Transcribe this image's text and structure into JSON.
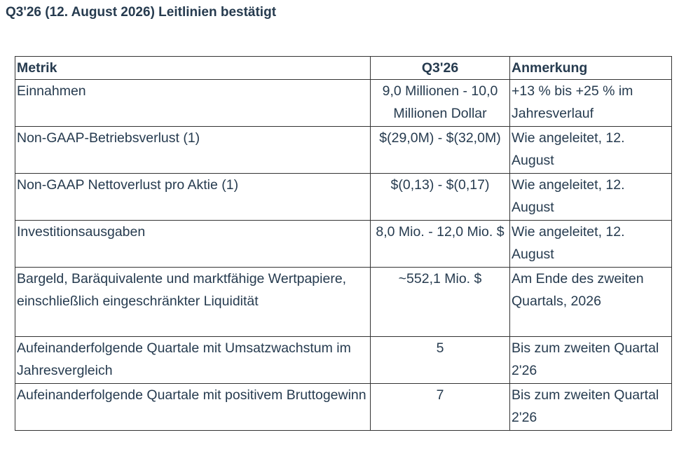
{
  "title": "Q3'26 (12. August 2026) Leitlinien bestätigt",
  "table": {
    "headers": [
      "Metrik",
      "Q3'26",
      "Anmerkung"
    ],
    "rows": [
      {
        "metric": "Einnahmen",
        "value": "9,0 Millionen - 10,0 Millionen Dollar",
        "note": "+13 % bis +25 % im Jahresverlauf",
        "lines": 2
      },
      {
        "metric": "Non-GAAP-Betriebsverlust (1)",
        "value": "$(29,0M) - $(32,0M)",
        "note": "Wie angeleitet, 12. August",
        "lines": 2
      },
      {
        "metric": "Non-GAAP Nettoverlust pro Aktie (1)",
        "value": "$(0,13) - $(0,17)",
        "note": "Wie angeleitet, 12. August",
        "lines": 2
      },
      {
        "metric": "Investitionsausgaben",
        "value": "8,0 Mio. - 12,0 Mio. $",
        "note": "Wie angeleitet, 12. August",
        "lines": 2
      },
      {
        "metric": "Bargeld, Baräquivalente und marktfähige Wertpapiere, einschließlich eingeschränkter Liquidität",
        "value": "~552,1 Mio. $",
        "note": "Am Ende des zweiten Quartals, 2026",
        "lines": 3
      },
      {
        "metric": "Aufeinanderfolgende Quartale mit Umsatzwachstum im Jahresvergleich",
        "value": "5",
        "note": "Bis zum zweiten Quartal 2'26",
        "lines": 2
      },
      {
        "metric": "Aufeinanderfolgende Quartale mit positivem Bruttogewinn",
        "value": "7",
        "note": "Bis zum zweiten Quartal 2'26",
        "lines": 2
      }
    ]
  }
}
